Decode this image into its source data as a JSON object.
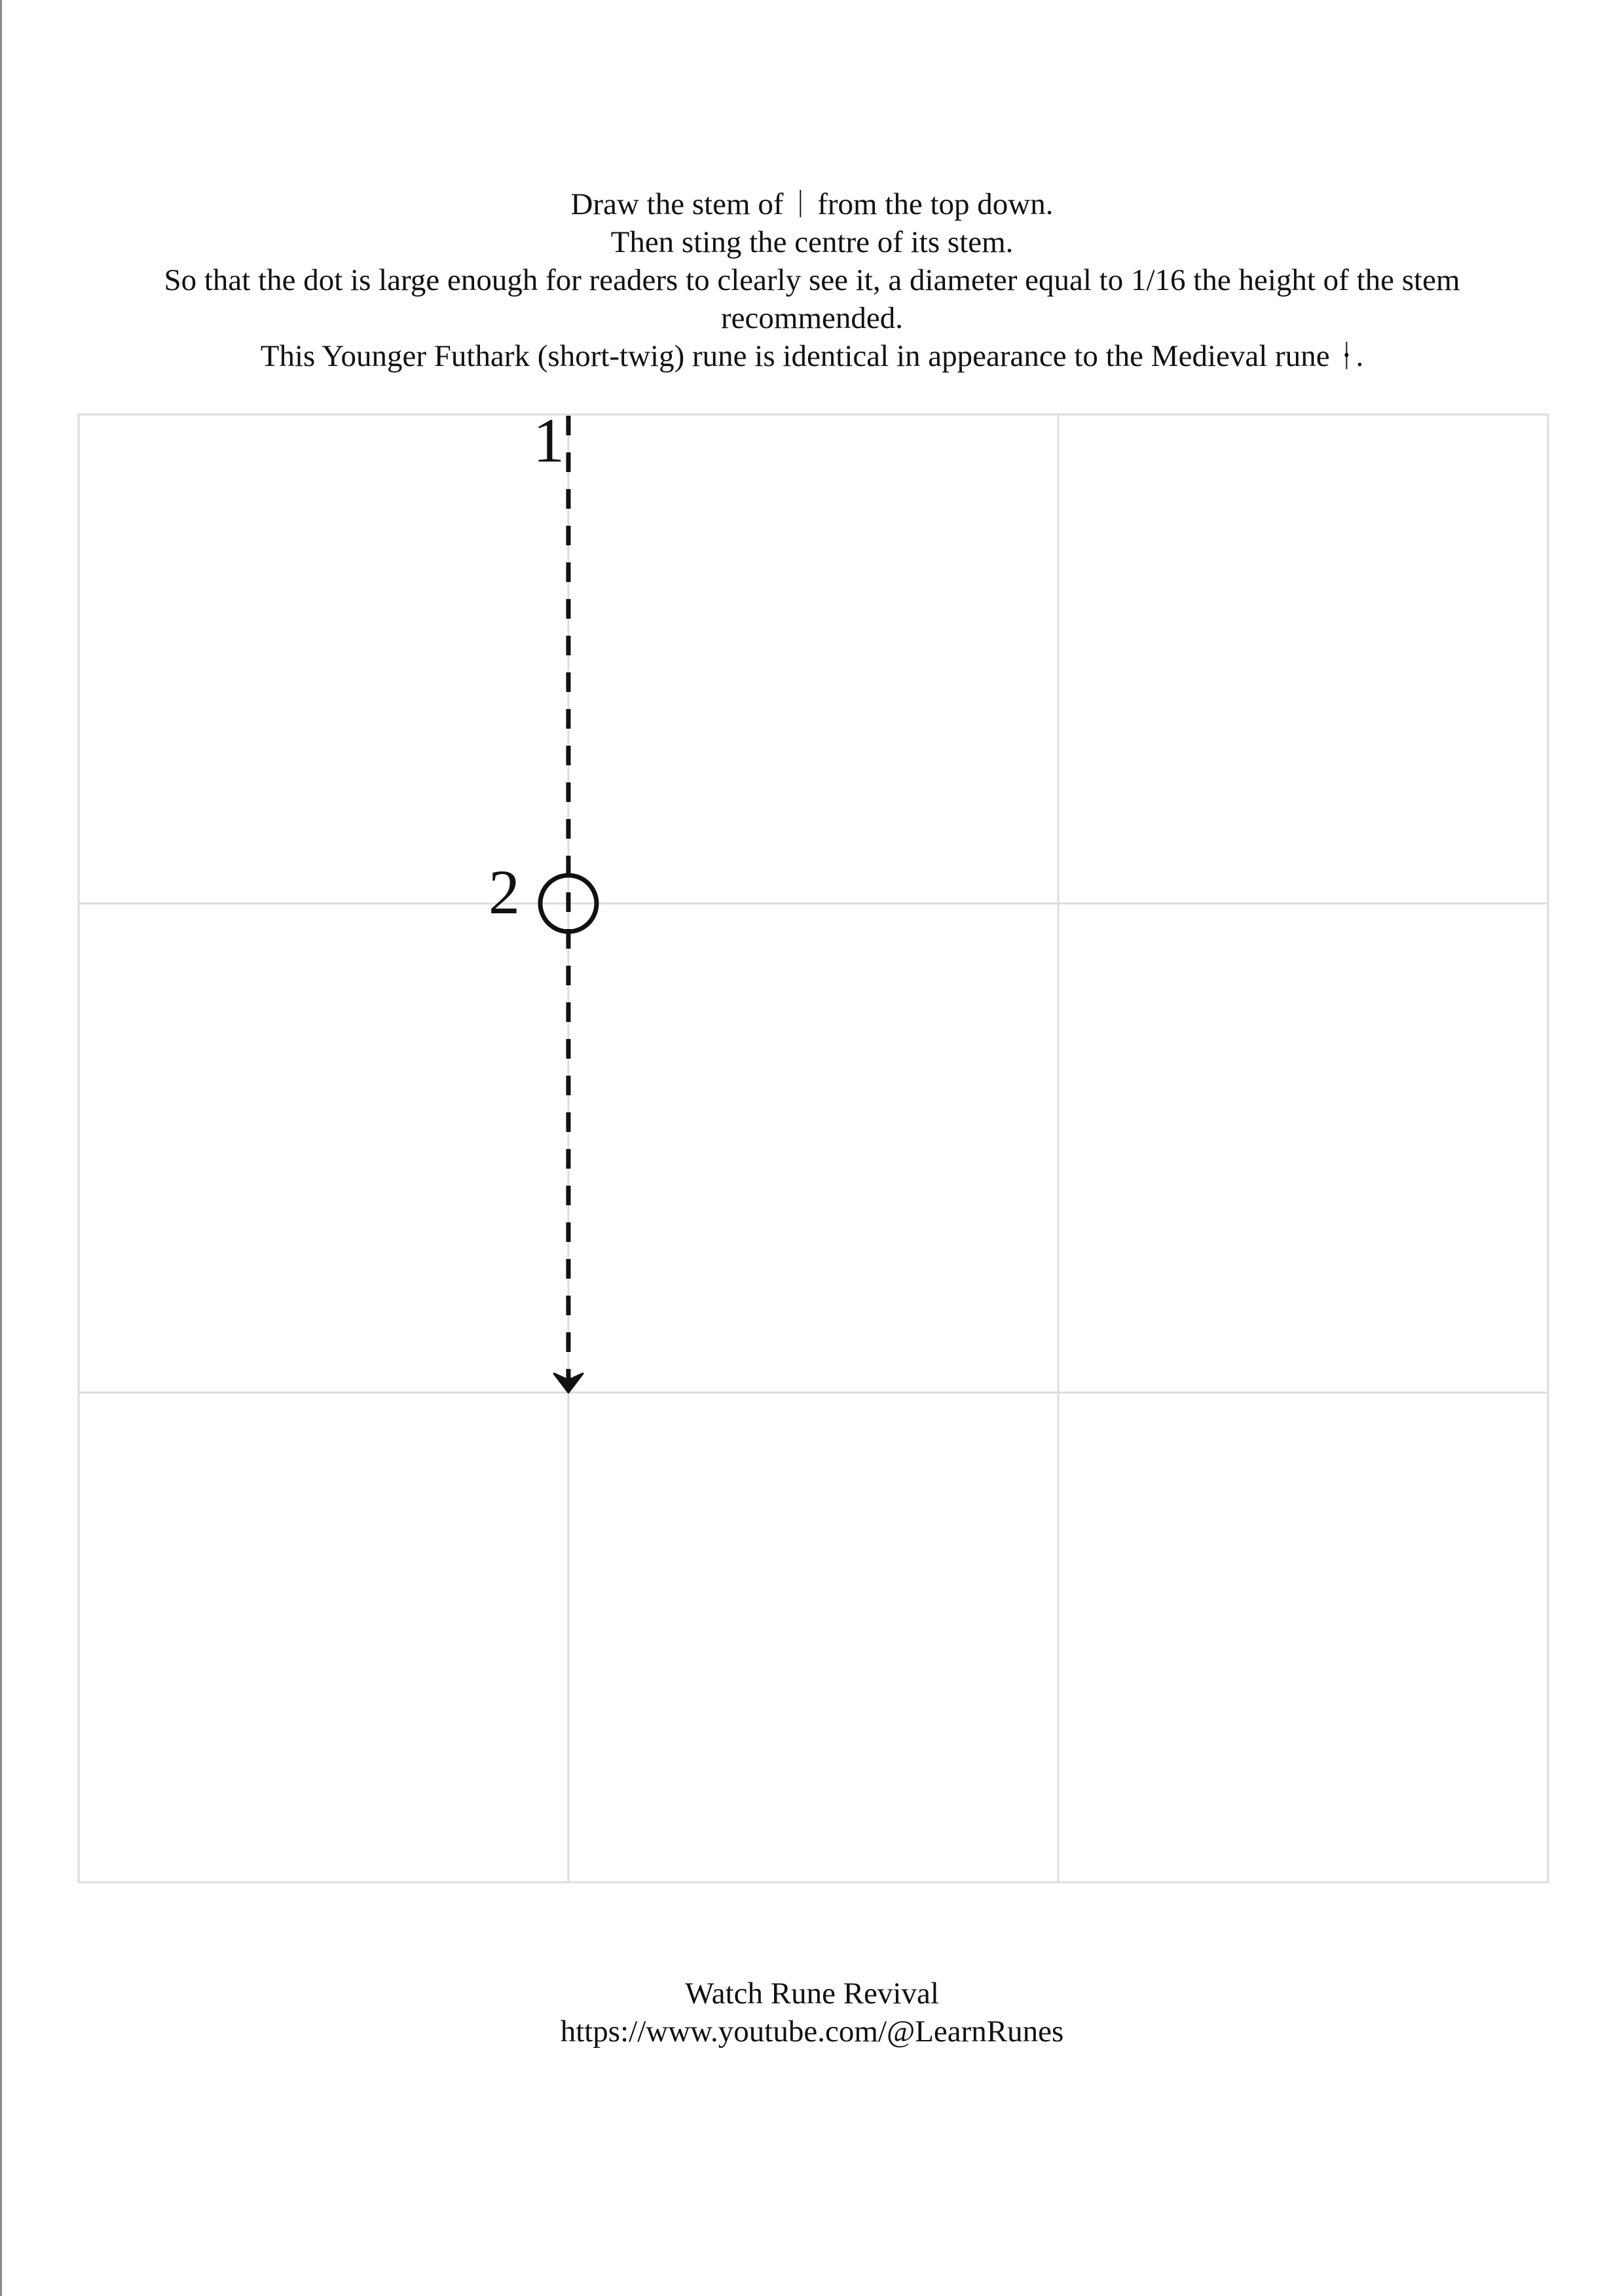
{
  "instructions": {
    "line1": "Draw the stem of ᛁ from the top down.",
    "line2": "Then sting the centre of its stem.",
    "line3": "So that the dot is large enough for readers to clearly see it, a diameter equal to 1/16 the height of the stem recommended.",
    "line4": "This Younger Futhark (short-twig) rune is identical in appearance to the Medieval rune ᚽ."
  },
  "diagram": {
    "step1_label": "1",
    "step2_label": "2"
  },
  "footer": {
    "title": "Watch Rune Revival",
    "url": "https://www.youtube.com/@LearnRunes"
  },
  "colors": {
    "grid": "#dcdcdc",
    "stroke": "#111111"
  }
}
